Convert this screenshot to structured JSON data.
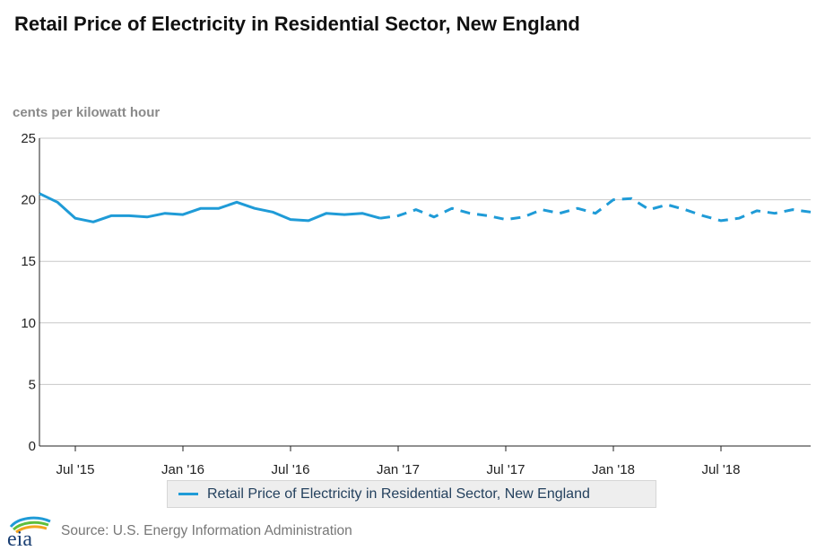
{
  "page": {
    "title": "Retail Price of Electricity in Residential Sector, New England",
    "source": "Source: U.S. Energy Information Administration",
    "logo_text": "eia"
  },
  "colors": {
    "series": "#1f9bd7",
    "grid": "#c8c8c8",
    "axis": "#222222",
    "ylabel": "#8a8a8a"
  },
  "chart_data": {
    "type": "line",
    "title": "Retail Price of Electricity in Residential Sector, New England",
    "ylabel": "cents per kilowatt hour",
    "xlabel": "",
    "ylim": [
      0,
      25
    ],
    "yticks": [
      0,
      5,
      10,
      15,
      20,
      25
    ],
    "grid": true,
    "legend": "bottom-center",
    "xtick_labels": [
      {
        "label": "Jul '15",
        "index": 2
      },
      {
        "label": "Jan '16",
        "index": 8
      },
      {
        "label": "Jul '16",
        "index": 14
      },
      {
        "label": "Jan '17",
        "index": 20
      },
      {
        "label": "Jul '17",
        "index": 26
      },
      {
        "label": "Jan '18",
        "index": 32
      },
      {
        "label": "Jul '18",
        "index": 38
      }
    ],
    "x": [
      "May 2015",
      "Jun 2015",
      "Jul 2015",
      "Aug 2015",
      "Sep 2015",
      "Oct 2015",
      "Nov 2015",
      "Dec 2015",
      "Jan 2016",
      "Feb 2016",
      "Mar 2016",
      "Apr 2016",
      "May 2016",
      "Jun 2016",
      "Jul 2016",
      "Aug 2016",
      "Sep 2016",
      "Oct 2016",
      "Nov 2016",
      "Dec 2016",
      "Jan 2017",
      "Feb 2017",
      "Mar 2017",
      "Apr 2017",
      "May 2017",
      "Jun 2017",
      "Jul 2017",
      "Aug 2017",
      "Sep 2017",
      "Oct 2017",
      "Nov 2017",
      "Dec 2017",
      "Jan 2018",
      "Feb 2018",
      "Mar 2018",
      "Apr 2018",
      "May 2018",
      "Jun 2018",
      "Jul 2018",
      "Aug 2018",
      "Sep 2018",
      "Oct 2018",
      "Nov 2018",
      "Dec 2018"
    ],
    "series": [
      {
        "name": "Retail Price of Electricity in Residential Sector, New England",
        "historical_end_index": 19,
        "values": [
          20.5,
          19.8,
          18.5,
          18.2,
          18.7,
          18.7,
          18.6,
          18.9,
          18.8,
          19.3,
          19.3,
          19.8,
          19.3,
          19.0,
          18.4,
          18.3,
          18.9,
          18.8,
          18.9,
          18.5,
          18.7,
          19.2,
          18.6,
          19.3,
          18.9,
          18.7,
          18.4,
          18.6,
          19.2,
          18.9,
          19.3,
          18.9,
          20.0,
          20.1,
          19.2,
          19.6,
          19.2,
          18.7,
          18.3,
          18.5,
          19.1,
          18.9,
          19.2,
          19.0
        ]
      }
    ]
  }
}
